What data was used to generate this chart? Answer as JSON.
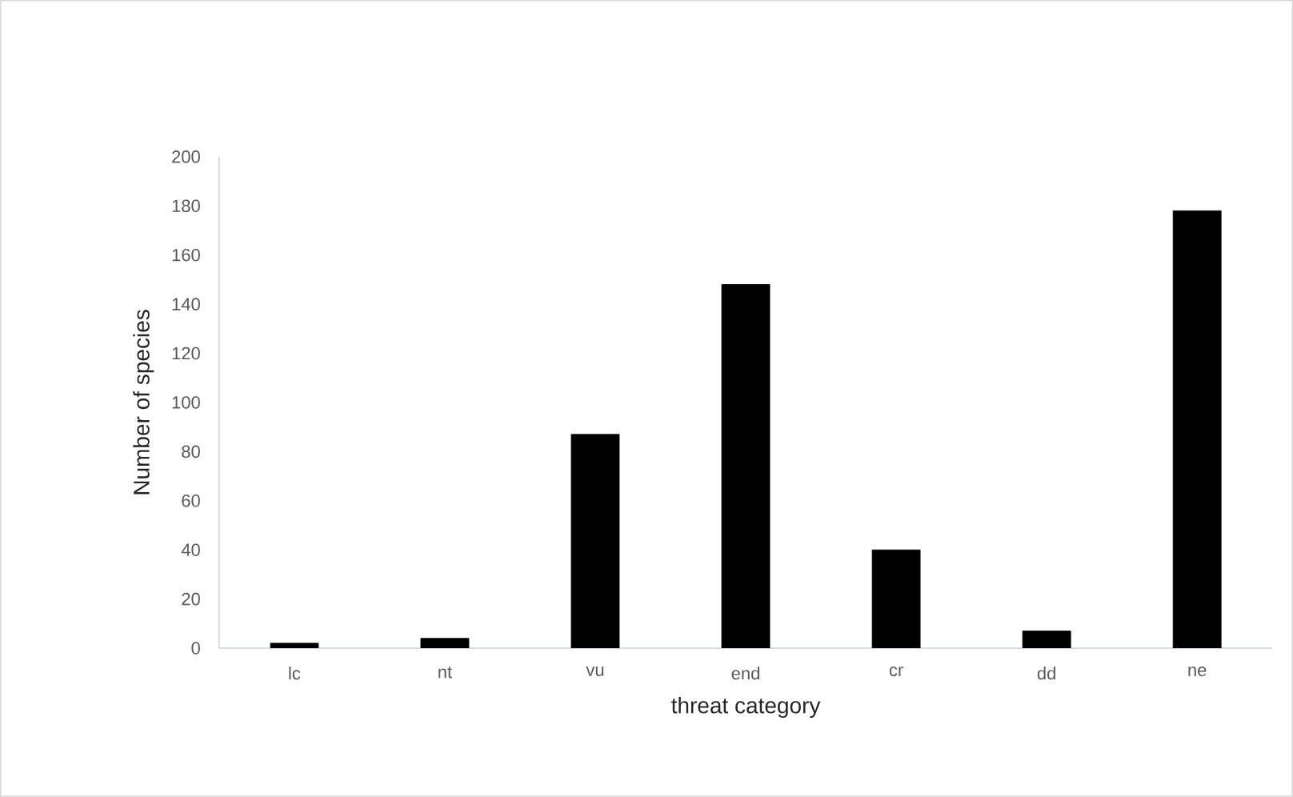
{
  "chart_data": {
    "type": "bar",
    "xlabel": "threat category",
    "ylabel": "Number of species",
    "categories": [
      "lc",
      "nt",
      "vu",
      "end",
      "cr",
      "dd",
      "ne"
    ],
    "values": [
      2,
      4,
      87,
      148,
      40,
      7,
      178
    ],
    "color": "#000000",
    "ylim": [
      0,
      200
    ],
    "yticks": [
      0,
      20,
      40,
      60,
      80,
      100,
      120,
      140,
      160,
      180,
      200
    ]
  }
}
